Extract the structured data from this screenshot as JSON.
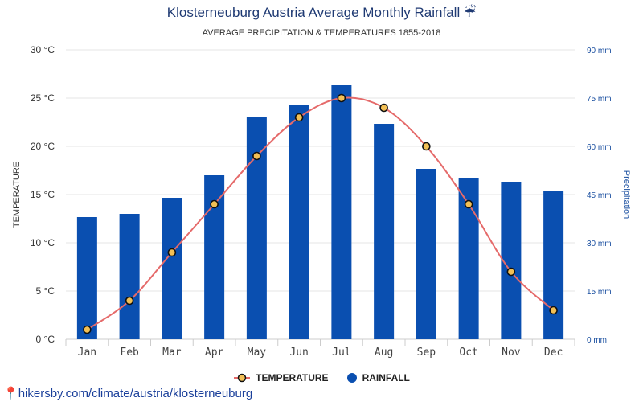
{
  "header": {
    "title": "Klosterneuburg Austria Average Monthly Rainfall",
    "title_icon": "☔",
    "subtitle": "AVERAGE PRECIPITATION & TEMPERATURES 1855-2018"
  },
  "legend": {
    "temperature_label": "TEMPERATURE",
    "rainfall_label": "RAINFALL"
  },
  "footer": {
    "pin_icon": "📍",
    "url_text": "hikersby.com/climate/austria/klosterneuburg"
  },
  "colors": {
    "bar": "#0a4fb0",
    "line": "#e56a6a",
    "marker_fill": "#f2c056",
    "left_axis_text": "#333333",
    "right_axis_text": "#1a4fa0",
    "grid": "#e6e6e6"
  },
  "chart_data": {
    "type": "bar+line",
    "categories": [
      "Jan",
      "Feb",
      "Mar",
      "Apr",
      "May",
      "Jun",
      "Jul",
      "Aug",
      "Sep",
      "Oct",
      "Nov",
      "Dec"
    ],
    "series": [
      {
        "name": "RAINFALL",
        "axis": "right",
        "unit": "mm",
        "values": [
          38,
          39,
          44,
          51,
          69,
          73,
          79,
          67,
          53,
          50,
          49,
          46
        ]
      },
      {
        "name": "TEMPERATURE",
        "axis": "left",
        "unit": "°C",
        "values": [
          1,
          4,
          9,
          14,
          19,
          23,
          25,
          24,
          20,
          14,
          7,
          3
        ]
      }
    ],
    "left_axis": {
      "label": "TEMPERATURE",
      "ylim": [
        0,
        30
      ],
      "ticks": [
        "0 °C",
        "5 °C",
        "10 °C",
        "15 °C",
        "20 °C",
        "25 °C",
        "30 °C"
      ]
    },
    "right_axis": {
      "label": "Precipitation",
      "ylim": [
        0,
        90
      ],
      "ticks": [
        "0 mm",
        "15 mm",
        "30 mm",
        "45 mm",
        "60 mm",
        "75 mm",
        "90 mm"
      ]
    },
    "grid": true,
    "legend_position": "bottom"
  }
}
